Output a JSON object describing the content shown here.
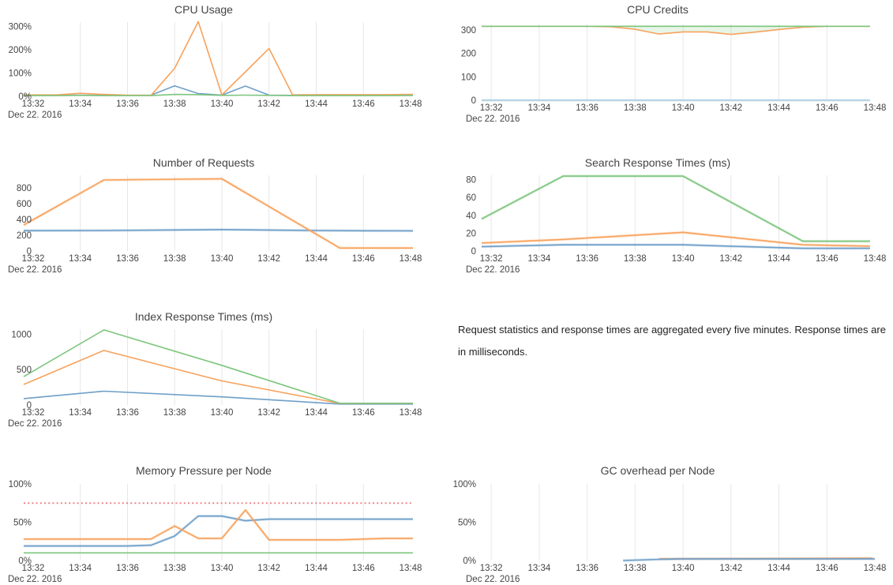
{
  "annotation": {
    "text": "Request statistics and response times are aggregated every five minutes. Response times are in milliseconds."
  },
  "palette": {
    "blue": "#6f9fc8",
    "lightblue": "#a9cbdf",
    "orange": "#f8a25c",
    "green": "#7cc57c",
    "red": "#ee7c80",
    "gridline": "#e7e7ea",
    "axis_text": "#444444",
    "title_text": "#444444",
    "fill_green": "rgba(124,197,124,0.18)"
  },
  "chart_data": {
    "time_axis": {
      "tick_minutes": [
        32,
        34,
        36,
        38,
        40,
        42,
        44,
        46,
        48
      ],
      "tick_labels": [
        "13:32",
        "13:34",
        "13:36",
        "13:38",
        "13:40",
        "13:42",
        "13:44",
        "13:46",
        "13:48"
      ],
      "date_label": "Dec 22. 2016"
    },
    "charts": [
      {
        "type": "line",
        "title": "CPU Usage",
        "x_range_minutes": [
          31.6,
          48.1
        ],
        "y_axis": {
          "max": 318,
          "ticks": [
            {
              "v": 0,
              "label": "0%"
            },
            {
              "v": 100,
              "label": "100%"
            },
            {
              "v": 200,
              "label": "200%"
            },
            {
              "v": 300,
              "label": "300%"
            }
          ]
        },
        "series": [
          {
            "color": "blue",
            "halo": false,
            "x": [
              31.6,
              33,
              34,
              35,
              36,
              37,
              38,
              39,
              40,
              41,
              42,
              43,
              44,
              45,
              46,
              47,
              48.1
            ],
            "y": [
              4,
              4,
              5,
              4,
              4,
              5,
              45,
              12,
              5,
              44,
              5,
              4,
              4,
              4,
              4,
              4,
              4
            ]
          },
          {
            "color": "orange",
            "halo": false,
            "x": [
              31.6,
              33,
              34,
              35,
              36,
              37,
              38,
              39,
              40,
              41,
              42,
              43,
              44,
              45,
              46,
              47,
              48.1
            ],
            "y": [
              6,
              6,
              13,
              8,
              5,
              4,
              120,
              320,
              6,
              105,
              205,
              6,
              7,
              7,
              7,
              7,
              8
            ]
          },
          {
            "color": "green",
            "halo": false,
            "x": [
              31.6,
              33,
              34,
              35,
              36,
              37,
              38,
              39,
              40,
              41,
              42,
              43,
              44,
              45,
              46,
              47,
              48.1
            ],
            "y": [
              3,
              3,
              4,
              3,
              3,
              3,
              8,
              7,
              4,
              5,
              4,
              3,
              3,
              3,
              3,
              3,
              4
            ]
          }
        ]
      },
      {
        "type": "line",
        "title": "CPU Credits",
        "x_range_minutes": [
          31.6,
          48.05
        ],
        "y_axis": {
          "max": 327,
          "ticks": [
            {
              "v": 0,
              "label": "0"
            },
            {
              "v": 100,
              "label": "100"
            },
            {
              "v": 200,
              "label": "200"
            },
            {
              "v": 300,
              "label": "300"
            }
          ]
        },
        "series": [
          {
            "color": "lightblue",
            "halo": true,
            "x": [
              31.6,
              47.8
            ],
            "y": [
              0,
              0
            ]
          },
          {
            "color": "orange",
            "halo": false,
            "x": [
              31.6,
              36,
              37,
              38,
              39,
              40,
              41,
              42,
              43,
              44,
              45,
              46,
              47.8
            ],
            "y": [
              316,
              316,
              314,
              303,
              283,
              292,
              292,
              281,
              291,
              302,
              312,
              316,
              316
            ]
          },
          {
            "color": "green",
            "halo": false,
            "x": [
              31.6,
              47.8
            ],
            "y": [
              316,
              316
            ]
          }
        ],
        "fill_between": {
          "upper": 2,
          "lower": 1
        }
      },
      {
        "type": "line",
        "title": "Number of Requests",
        "x_range_minutes": [
          31.6,
          48.1
        ],
        "y_axis": {
          "max": 960,
          "ticks": [
            {
              "v": 0,
              "label": "0"
            },
            {
              "v": 200,
              "label": "200"
            },
            {
              "v": 400,
              "label": "400"
            },
            {
              "v": 600,
              "label": "600"
            },
            {
              "v": 800,
              "label": "800"
            }
          ]
        },
        "series": [
          {
            "color": "blue",
            "halo": true,
            "x": [
              31.6,
              35,
              38,
              40,
              42,
              44,
              46,
              48.1
            ],
            "y": [
              258,
              260,
              267,
              272,
              266,
              260,
              257,
              256
            ]
          },
          {
            "color": "orange",
            "halo": true,
            "x": [
              31.6,
              35,
              40,
              45,
              48.1
            ],
            "y": [
              330,
              900,
              915,
              38,
              38
            ]
          }
        ]
      },
      {
        "type": "line",
        "title": "Search Response Times (ms)",
        "x_range_minutes": [
          31.6,
          48.05
        ],
        "y_axis": {
          "max": 85,
          "ticks": [
            {
              "v": 0,
              "label": "0"
            },
            {
              "v": 20,
              "label": "20"
            },
            {
              "v": 40,
              "label": "40"
            },
            {
              "v": 60,
              "label": "60"
            },
            {
              "v": 80,
              "label": "80"
            }
          ]
        },
        "series": [
          {
            "color": "blue",
            "halo": true,
            "x": [
              31.6,
              35,
              40,
              45,
              47.8
            ],
            "y": [
              5,
              7,
              7,
              3,
              3
            ]
          },
          {
            "color": "orange",
            "halo": true,
            "x": [
              31.6,
              35,
              40,
              45,
              47.8
            ],
            "y": [
              9,
              13,
              21,
              7,
              5.5
            ]
          },
          {
            "color": "green",
            "halo": true,
            "x": [
              31.6,
              35,
              40,
              45,
              47.8
            ],
            "y": [
              36,
              84,
              84,
              11,
              11
            ]
          }
        ]
      },
      {
        "type": "line",
        "title": "Index Response Times (ms)",
        "x_range_minutes": [
          31.6,
          48.1
        ],
        "y_axis": {
          "max": 1070,
          "ticks": [
            {
              "v": 0,
              "label": "0"
            },
            {
              "v": 500,
              "label": "500"
            },
            {
              "v": 1000,
              "label": "1000"
            }
          ]
        },
        "series": [
          {
            "color": "blue",
            "halo": false,
            "x": [
              31.6,
              35,
              40,
              45,
              48.1
            ],
            "y": [
              90,
              195,
              115,
              13,
              13
            ]
          },
          {
            "color": "orange",
            "halo": false,
            "x": [
              31.6,
              35,
              40,
              45,
              48.1
            ],
            "y": [
              290,
              770,
              340,
              22,
              22
            ]
          },
          {
            "color": "green",
            "halo": false,
            "x": [
              31.6,
              35,
              40,
              45,
              48.1
            ],
            "y": [
              400,
              1060,
              560,
              25,
              25
            ]
          }
        ]
      },
      {
        "type": "line",
        "title": "Memory Pressure per Node",
        "x_range_minutes": [
          31.6,
          48.1
        ],
        "y_axis": {
          "max": 100,
          "ticks": [
            {
              "v": 0,
              "label": "0%"
            },
            {
              "v": 50,
              "label": "50%"
            },
            {
              "v": 100,
              "label": "100%"
            }
          ]
        },
        "series": [
          {
            "color": "blue",
            "halo": true,
            "x": [
              31.6,
              33,
              34,
              35,
              36,
              37,
              38,
              39,
              40,
              41,
              42,
              43,
              44,
              45,
              46,
              47,
              48.1
            ],
            "y": [
              19,
              19,
              19,
              19,
              19,
              20,
              32,
              58,
              58,
              52,
              54,
              54,
              54,
              54,
              54,
              54,
              54
            ]
          },
          {
            "color": "orange",
            "halo": true,
            "x": [
              31.6,
              33,
              34,
              35,
              36,
              37,
              38,
              39,
              40,
              41,
              42,
              43,
              44,
              45,
              46,
              47,
              48.1
            ],
            "y": [
              28,
              28,
              28,
              28,
              28,
              28,
              45,
              29,
              29,
              66,
              27,
              27,
              27,
              27,
              28,
              29,
              29
            ]
          },
          {
            "color": "green",
            "halo": false,
            "x": [
              31.6,
              48.1
            ],
            "y": [
              10,
              10
            ]
          }
        ],
        "threshold": {
          "value": 75,
          "color": "red",
          "style": "dotted"
        }
      },
      {
        "type": "line",
        "title": "GC overhead per Node",
        "x_range_minutes": [
          31.6,
          48.05
        ],
        "y_axis": {
          "max": 100,
          "ticks": [
            {
              "v": 0,
              "label": "0%"
            },
            {
              "v": 50,
              "label": "50%"
            },
            {
              "v": 100,
              "label": "100%"
            }
          ]
        },
        "series": [
          {
            "color": "orange",
            "halo": true,
            "x": [
              39,
              40,
              44,
              47.9
            ],
            "y": [
              2.2,
              2.3,
              2.6,
              3
            ]
          },
          {
            "color": "blue",
            "halo": true,
            "x": [
              37.5,
              39,
              40,
              48
            ],
            "y": [
              0,
              1.5,
              2.2,
              2.2
            ]
          }
        ]
      }
    ]
  }
}
